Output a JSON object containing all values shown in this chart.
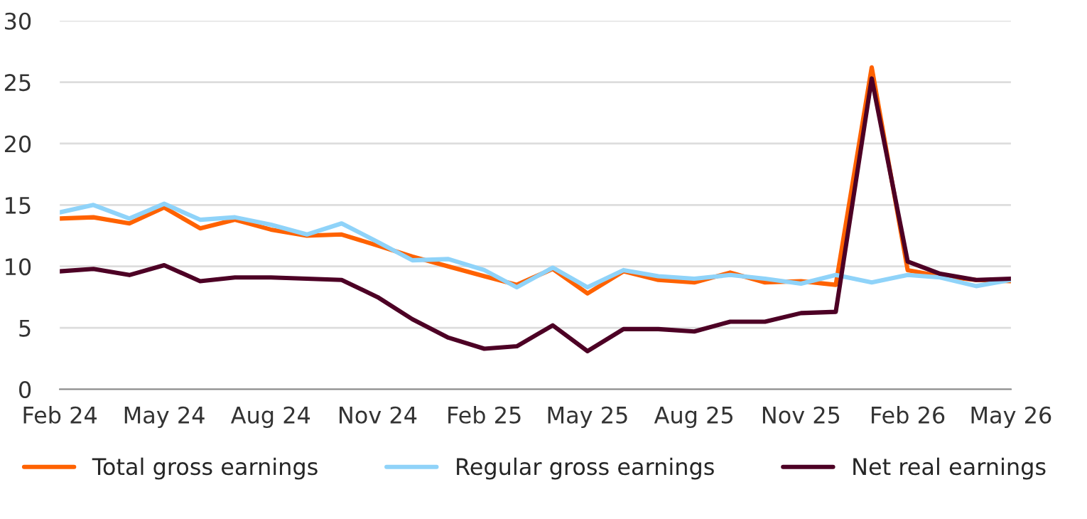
{
  "chart_data": {
    "type": "line",
    "x": [
      "2024-02",
      "2024-03",
      "2024-04",
      "2024-05",
      "2024-06",
      "2024-07",
      "2024-08",
      "2024-09",
      "2024-10",
      "2024-11",
      "2024-12",
      "2025-01",
      "2025-02",
      "2025-03",
      "2025-04",
      "2025-05",
      "2025-06",
      "2025-07",
      "2025-08",
      "2025-09",
      "2025-10",
      "2025-11",
      "2025-12",
      "2026-01",
      "2026-02",
      "2026-03",
      "2026-04",
      "2026-05"
    ],
    "series": [
      {
        "name": "Total gross earnings",
        "color": "#ff6200",
        "values": [
          13.9,
          14.0,
          13.5,
          14.8,
          13.1,
          13.8,
          13.0,
          12.5,
          12.6,
          11.7,
          10.8,
          10.0,
          9.2,
          8.5,
          9.8,
          7.8,
          9.6,
          8.9,
          8.7,
          9.5,
          8.7,
          8.8,
          8.5,
          26.2,
          9.7,
          9.2,
          8.9,
          8.8
        ]
      },
      {
        "name": "Regular gross earnings",
        "color": "#8fd3f9",
        "values": [
          14.4,
          15.0,
          13.9,
          15.1,
          13.8,
          14.0,
          13.4,
          12.6,
          13.5,
          12.0,
          10.5,
          10.6,
          9.7,
          8.3,
          9.9,
          8.3,
          9.7,
          9.2,
          9.0,
          9.3,
          9.0,
          8.6,
          9.3,
          8.7,
          9.3,
          9.1,
          8.4,
          8.9
        ]
      },
      {
        "name": "Net real earnings",
        "color": "#4d0025",
        "values": [
          9.6,
          9.8,
          9.3,
          10.1,
          8.8,
          9.1,
          9.1,
          9.0,
          8.9,
          7.5,
          5.7,
          4.2,
          3.3,
          3.5,
          5.2,
          3.1,
          4.9,
          4.9,
          4.7,
          5.5,
          5.5,
          6.2,
          6.3,
          25.3,
          10.4,
          9.4,
          8.9,
          9.0
        ]
      }
    ],
    "xlim": [
      "2024-02",
      "2026-05"
    ],
    "xticks": [
      {
        "value": "2024-02",
        "label": "Feb 24"
      },
      {
        "value": "2024-05",
        "label": "May 24"
      },
      {
        "value": "2024-08",
        "label": "Aug 24"
      },
      {
        "value": "2024-11",
        "label": "Nov 24"
      },
      {
        "value": "2025-02",
        "label": "Feb 25"
      },
      {
        "value": "2025-05",
        "label": "May 25"
      },
      {
        "value": "2025-08",
        "label": "Aug 25"
      },
      {
        "value": "2025-11",
        "label": "Nov 25"
      },
      {
        "value": "2026-02",
        "label": "Feb 26"
      },
      {
        "value": "2026-05",
        "label": "May 26"
      }
    ],
    "ylim": [
      0,
      30
    ],
    "yticks": [
      0,
      5,
      10,
      15,
      20,
      25,
      30
    ],
    "grid": "y",
    "legend": "bottom",
    "marker": "none",
    "line_style": "solid"
  }
}
